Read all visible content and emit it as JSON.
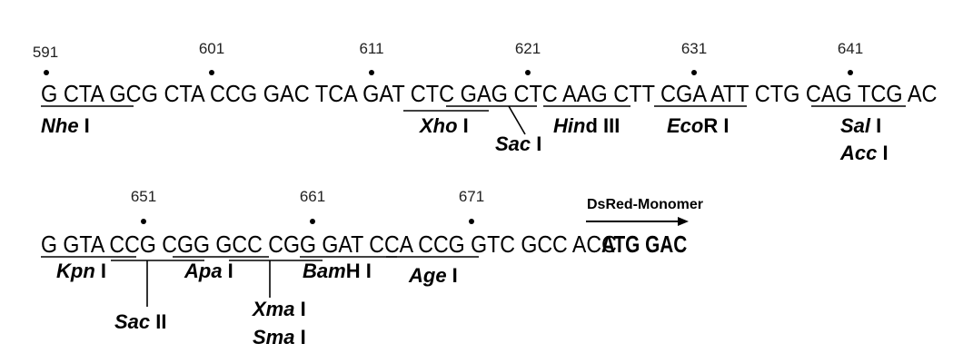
{
  "row1": {
    "positions": [
      "591",
      "601",
      "611",
      "621",
      "631",
      "641"
    ],
    "sequence": "G CTA GCG CTA CCG GAC TCA GAT CTC GAG CTC AAG CTT CGA ATT CTG CAG TCG AC",
    "enzymes": [
      {
        "italic": "Nhe",
        "roman": " I"
      },
      {
        "italic": "Xho",
        "roman": " I"
      },
      {
        "italic": "Sac",
        "roman": " I"
      },
      {
        "italic": "Hin",
        "roman": "d III"
      },
      {
        "italic": "Eco",
        "roman": "R I"
      },
      {
        "italic": "Sal",
        "roman": " I"
      },
      {
        "italic": "Acc",
        "roman": " I"
      }
    ]
  },
  "row2": {
    "positions": [
      "651",
      "661",
      "671"
    ],
    "sequence": "G GTA CCG CGG GCC CGG GAT CCA CCG GTC GCC ACC",
    "start_codons": "ATG GAC",
    "gene_label": "DsRed-Monomer",
    "enzymes": [
      {
        "italic": "Kpn",
        "roman": " I"
      },
      {
        "italic": "Apa",
        "roman": " I"
      },
      {
        "italic": "Bam",
        "roman": "H I"
      },
      {
        "italic": "Age",
        "roman": " I"
      },
      {
        "italic": "Sac",
        "roman": " II"
      },
      {
        "italic": "Xma",
        "roman": " I"
      },
      {
        "italic": "Sma",
        "roman": " I"
      }
    ]
  }
}
